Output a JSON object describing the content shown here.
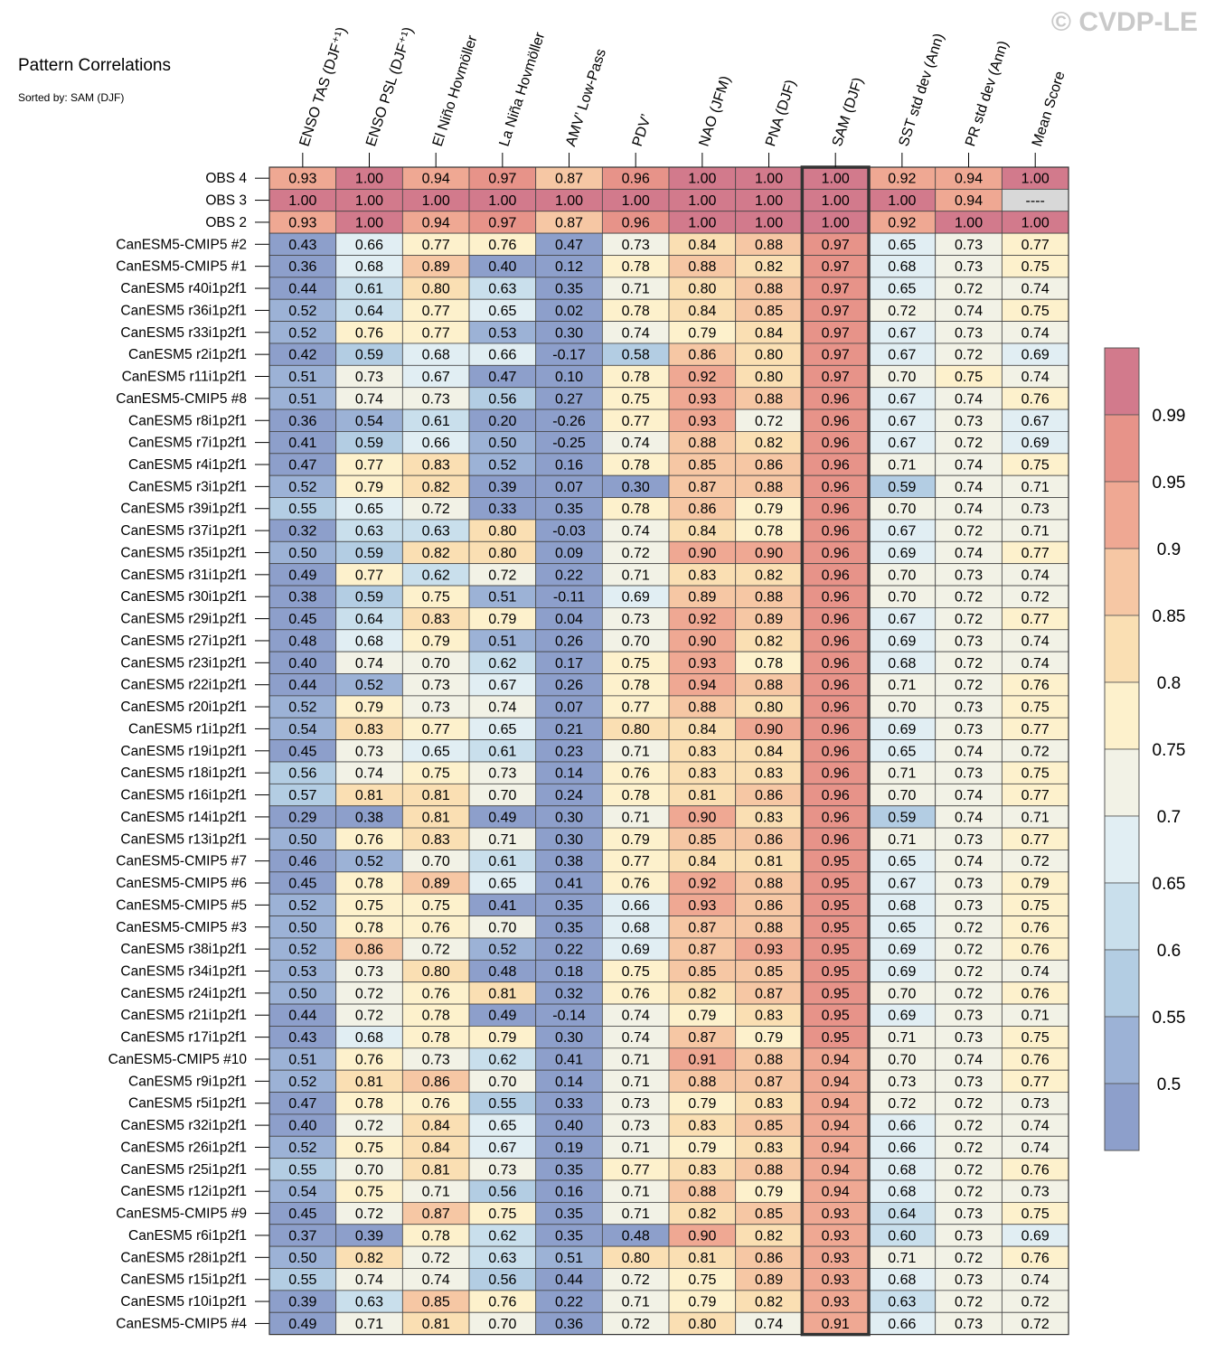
{
  "copyright": "© CVDP-LE",
  "title": "Pattern Correlations",
  "subtitle": "Sorted by: SAM (DJF)",
  "chart_data": {
    "type": "heatmap",
    "highlighted_column": "SAM (DJF)",
    "columns": [
      "ENSO TAS (DJF⁺¹)",
      "ENSO PSL (DJF⁺¹)",
      "El Niño Hovmöller",
      "La Niña Hovmöller",
      "AMV’ Low-Pass",
      "PDV’",
      "NAO (JFM)",
      "PNA (DJF)",
      "SAM (DJF)",
      "SST std dev (Ann)",
      "PR std dev (Ann)",
      "Mean Score"
    ],
    "rows": [
      {
        "label": "OBS 4",
        "values": [
          "0.93",
          "1.00",
          "0.94",
          "0.97",
          "0.87",
          "0.96",
          "1.00",
          "1.00",
          "1.00",
          "0.92",
          "0.94",
          "1.00"
        ]
      },
      {
        "label": "OBS 3",
        "values": [
          "1.00",
          "1.00",
          "1.00",
          "1.00",
          "1.00",
          "1.00",
          "1.00",
          "1.00",
          "1.00",
          "1.00",
          "0.94",
          "----"
        ]
      },
      {
        "label": "OBS 2",
        "values": [
          "0.93",
          "1.00",
          "0.94",
          "0.97",
          "0.87",
          "0.96",
          "1.00",
          "1.00",
          "1.00",
          "0.92",
          "1.00",
          "1.00"
        ]
      },
      {
        "label": "CanESM5-CMIP5 #2",
        "values": [
          "0.43",
          "0.66",
          "0.77",
          "0.76",
          "0.47",
          "0.73",
          "0.84",
          "0.88",
          "0.97",
          "0.65",
          "0.73",
          "0.77"
        ]
      },
      {
        "label": "CanESM5-CMIP5 #1",
        "values": [
          "0.36",
          "0.68",
          "0.89",
          "0.40",
          "0.12",
          "0.78",
          "0.88",
          "0.82",
          "0.97",
          "0.68",
          "0.73",
          "0.75"
        ]
      },
      {
        "label": "CanESM5 r40i1p2f1",
        "values": [
          "0.44",
          "0.61",
          "0.80",
          "0.63",
          "0.35",
          "0.71",
          "0.80",
          "0.88",
          "0.97",
          "0.65",
          "0.72",
          "0.74"
        ]
      },
      {
        "label": "CanESM5 r36i1p2f1",
        "values": [
          "0.52",
          "0.64",
          "0.77",
          "0.65",
          "0.02",
          "0.78",
          "0.84",
          "0.85",
          "0.97",
          "0.72",
          "0.74",
          "0.75"
        ]
      },
      {
        "label": "CanESM5 r33i1p2f1",
        "values": [
          "0.52",
          "0.76",
          "0.77",
          "0.53",
          "0.30",
          "0.74",
          "0.79",
          "0.84",
          "0.97",
          "0.67",
          "0.73",
          "0.74"
        ]
      },
      {
        "label": "CanESM5 r2i1p2f1",
        "values": [
          "0.42",
          "0.59",
          "0.68",
          "0.66",
          "-0.17",
          "0.58",
          "0.86",
          "0.80",
          "0.97",
          "0.67",
          "0.72",
          "0.69"
        ]
      },
      {
        "label": "CanESM5 r11i1p2f1",
        "values": [
          "0.51",
          "0.73",
          "0.67",
          "0.47",
          "0.10",
          "0.78",
          "0.92",
          "0.80",
          "0.97",
          "0.70",
          "0.75",
          "0.74"
        ]
      },
      {
        "label": "CanESM5-CMIP5 #8",
        "values": [
          "0.51",
          "0.74",
          "0.73",
          "0.56",
          "0.27",
          "0.75",
          "0.93",
          "0.88",
          "0.96",
          "0.67",
          "0.74",
          "0.76"
        ]
      },
      {
        "label": "CanESM5 r8i1p2f1",
        "values": [
          "0.36",
          "0.54",
          "0.61",
          "0.20",
          "-0.26",
          "0.77",
          "0.93",
          "0.72",
          "0.96",
          "0.67",
          "0.73",
          "0.67"
        ]
      },
      {
        "label": "CanESM5 r7i1p2f1",
        "values": [
          "0.41",
          "0.59",
          "0.66",
          "0.50",
          "-0.25",
          "0.74",
          "0.88",
          "0.82",
          "0.96",
          "0.67",
          "0.72",
          "0.69"
        ]
      },
      {
        "label": "CanESM5 r4i1p2f1",
        "values": [
          "0.47",
          "0.77",
          "0.83",
          "0.52",
          "0.16",
          "0.78",
          "0.85",
          "0.86",
          "0.96",
          "0.71",
          "0.74",
          "0.75"
        ]
      },
      {
        "label": "CanESM5 r3i1p2f1",
        "values": [
          "0.52",
          "0.79",
          "0.82",
          "0.39",
          "0.07",
          "0.30",
          "0.87",
          "0.88",
          "0.96",
          "0.59",
          "0.74",
          "0.71"
        ]
      },
      {
        "label": "CanESM5 r39i1p2f1",
        "values": [
          "0.55",
          "0.65",
          "0.72",
          "0.33",
          "0.35",
          "0.78",
          "0.86",
          "0.79",
          "0.96",
          "0.70",
          "0.74",
          "0.73"
        ]
      },
      {
        "label": "CanESM5 r37i1p2f1",
        "values": [
          "0.32",
          "0.63",
          "0.63",
          "0.80",
          "-0.03",
          "0.74",
          "0.84",
          "0.78",
          "0.96",
          "0.67",
          "0.72",
          "0.71"
        ]
      },
      {
        "label": "CanESM5 r35i1p2f1",
        "values": [
          "0.50",
          "0.59",
          "0.82",
          "0.80",
          "0.09",
          "0.72",
          "0.90",
          "0.90",
          "0.96",
          "0.69",
          "0.74",
          "0.77"
        ]
      },
      {
        "label": "CanESM5 r31i1p2f1",
        "values": [
          "0.49",
          "0.77",
          "0.62",
          "0.72",
          "0.22",
          "0.71",
          "0.83",
          "0.82",
          "0.96",
          "0.70",
          "0.73",
          "0.74"
        ]
      },
      {
        "label": "CanESM5 r30i1p2f1",
        "values": [
          "0.38",
          "0.59",
          "0.75",
          "0.51",
          "-0.11",
          "0.69",
          "0.89",
          "0.88",
          "0.96",
          "0.70",
          "0.72",
          "0.72"
        ]
      },
      {
        "label": "CanESM5 r29i1p2f1",
        "values": [
          "0.45",
          "0.64",
          "0.83",
          "0.79",
          "0.04",
          "0.73",
          "0.92",
          "0.89",
          "0.96",
          "0.67",
          "0.72",
          "0.77"
        ]
      },
      {
        "label": "CanESM5 r27i1p2f1",
        "values": [
          "0.48",
          "0.68",
          "0.79",
          "0.51",
          "0.26",
          "0.70",
          "0.90",
          "0.82",
          "0.96",
          "0.69",
          "0.73",
          "0.74"
        ]
      },
      {
        "label": "CanESM5 r23i1p2f1",
        "values": [
          "0.40",
          "0.74",
          "0.70",
          "0.62",
          "0.17",
          "0.75",
          "0.93",
          "0.78",
          "0.96",
          "0.68",
          "0.72",
          "0.74"
        ]
      },
      {
        "label": "CanESM5 r22i1p2f1",
        "values": [
          "0.44",
          "0.52",
          "0.73",
          "0.67",
          "0.26",
          "0.78",
          "0.94",
          "0.88",
          "0.96",
          "0.71",
          "0.72",
          "0.76"
        ]
      },
      {
        "label": "CanESM5 r20i1p2f1",
        "values": [
          "0.52",
          "0.79",
          "0.73",
          "0.74",
          "0.07",
          "0.77",
          "0.88",
          "0.80",
          "0.96",
          "0.70",
          "0.73",
          "0.75"
        ]
      },
      {
        "label": "CanESM5 r1i1p2f1",
        "values": [
          "0.54",
          "0.83",
          "0.77",
          "0.65",
          "0.21",
          "0.80",
          "0.84",
          "0.90",
          "0.96",
          "0.69",
          "0.73",
          "0.77"
        ]
      },
      {
        "label": "CanESM5 r19i1p2f1",
        "values": [
          "0.45",
          "0.73",
          "0.65",
          "0.61",
          "0.23",
          "0.71",
          "0.83",
          "0.84",
          "0.96",
          "0.65",
          "0.74",
          "0.72"
        ]
      },
      {
        "label": "CanESM5 r18i1p2f1",
        "values": [
          "0.56",
          "0.74",
          "0.75",
          "0.73",
          "0.14",
          "0.76",
          "0.83",
          "0.83",
          "0.96",
          "0.71",
          "0.73",
          "0.75"
        ]
      },
      {
        "label": "CanESM5 r16i1p2f1",
        "values": [
          "0.57",
          "0.81",
          "0.81",
          "0.70",
          "0.24",
          "0.78",
          "0.81",
          "0.86",
          "0.96",
          "0.70",
          "0.74",
          "0.77"
        ]
      },
      {
        "label": "CanESM5 r14i1p2f1",
        "values": [
          "0.29",
          "0.38",
          "0.81",
          "0.49",
          "0.30",
          "0.71",
          "0.90",
          "0.83",
          "0.96",
          "0.59",
          "0.74",
          "0.71"
        ]
      },
      {
        "label": "CanESM5 r13i1p2f1",
        "values": [
          "0.50",
          "0.76",
          "0.83",
          "0.71",
          "0.30",
          "0.79",
          "0.85",
          "0.86",
          "0.96",
          "0.71",
          "0.73",
          "0.77"
        ]
      },
      {
        "label": "CanESM5-CMIP5 #7",
        "values": [
          "0.46",
          "0.52",
          "0.70",
          "0.61",
          "0.38",
          "0.77",
          "0.84",
          "0.81",
          "0.95",
          "0.65",
          "0.74",
          "0.72"
        ]
      },
      {
        "label": "CanESM5-CMIP5 #6",
        "values": [
          "0.45",
          "0.78",
          "0.89",
          "0.65",
          "0.41",
          "0.76",
          "0.92",
          "0.88",
          "0.95",
          "0.67",
          "0.73",
          "0.79"
        ]
      },
      {
        "label": "CanESM5-CMIP5 #5",
        "values": [
          "0.52",
          "0.75",
          "0.75",
          "0.41",
          "0.35",
          "0.66",
          "0.93",
          "0.86",
          "0.95",
          "0.68",
          "0.73",
          "0.75"
        ]
      },
      {
        "label": "CanESM5-CMIP5 #3",
        "values": [
          "0.50",
          "0.78",
          "0.76",
          "0.70",
          "0.35",
          "0.68",
          "0.87",
          "0.88",
          "0.95",
          "0.65",
          "0.72",
          "0.76"
        ]
      },
      {
        "label": "CanESM5 r38i1p2f1",
        "values": [
          "0.52",
          "0.86",
          "0.72",
          "0.52",
          "0.22",
          "0.69",
          "0.87",
          "0.93",
          "0.95",
          "0.69",
          "0.72",
          "0.76"
        ]
      },
      {
        "label": "CanESM5 r34i1p2f1",
        "values": [
          "0.53",
          "0.73",
          "0.80",
          "0.48",
          "0.18",
          "0.75",
          "0.85",
          "0.85",
          "0.95",
          "0.69",
          "0.72",
          "0.74"
        ]
      },
      {
        "label": "CanESM5 r24i1p2f1",
        "values": [
          "0.50",
          "0.72",
          "0.76",
          "0.81",
          "0.32",
          "0.76",
          "0.82",
          "0.87",
          "0.95",
          "0.70",
          "0.72",
          "0.76"
        ]
      },
      {
        "label": "CanESM5 r21i1p2f1",
        "values": [
          "0.44",
          "0.72",
          "0.78",
          "0.49",
          "-0.14",
          "0.74",
          "0.79",
          "0.83",
          "0.95",
          "0.69",
          "0.73",
          "0.71"
        ]
      },
      {
        "label": "CanESM5 r17i1p2f1",
        "values": [
          "0.43",
          "0.68",
          "0.78",
          "0.79",
          "0.30",
          "0.74",
          "0.87",
          "0.79",
          "0.95",
          "0.71",
          "0.73",
          "0.75"
        ]
      },
      {
        "label": "CanESM5-CMIP5 #10",
        "values": [
          "0.51",
          "0.76",
          "0.73",
          "0.62",
          "0.41",
          "0.71",
          "0.91",
          "0.88",
          "0.94",
          "0.70",
          "0.74",
          "0.76"
        ]
      },
      {
        "label": "CanESM5 r9i1p2f1",
        "values": [
          "0.52",
          "0.81",
          "0.86",
          "0.70",
          "0.14",
          "0.71",
          "0.88",
          "0.87",
          "0.94",
          "0.73",
          "0.73",
          "0.77"
        ]
      },
      {
        "label": "CanESM5 r5i1p2f1",
        "values": [
          "0.47",
          "0.78",
          "0.76",
          "0.55",
          "0.33",
          "0.73",
          "0.79",
          "0.83",
          "0.94",
          "0.72",
          "0.72",
          "0.73"
        ]
      },
      {
        "label": "CanESM5 r32i1p2f1",
        "values": [
          "0.40",
          "0.72",
          "0.84",
          "0.65",
          "0.40",
          "0.73",
          "0.83",
          "0.85",
          "0.94",
          "0.66",
          "0.72",
          "0.74"
        ]
      },
      {
        "label": "CanESM5 r26i1p2f1",
        "values": [
          "0.52",
          "0.75",
          "0.84",
          "0.67",
          "0.19",
          "0.71",
          "0.79",
          "0.83",
          "0.94",
          "0.66",
          "0.72",
          "0.74"
        ]
      },
      {
        "label": "CanESM5 r25i1p2f1",
        "values": [
          "0.55",
          "0.70",
          "0.81",
          "0.73",
          "0.35",
          "0.77",
          "0.83",
          "0.88",
          "0.94",
          "0.68",
          "0.72",
          "0.76"
        ]
      },
      {
        "label": "CanESM5 r12i1p2f1",
        "values": [
          "0.54",
          "0.75",
          "0.71",
          "0.56",
          "0.16",
          "0.71",
          "0.88",
          "0.79",
          "0.94",
          "0.68",
          "0.72",
          "0.73"
        ]
      },
      {
        "label": "CanESM5-CMIP5 #9",
        "values": [
          "0.45",
          "0.72",
          "0.87",
          "0.75",
          "0.35",
          "0.71",
          "0.82",
          "0.85",
          "0.93",
          "0.64",
          "0.73",
          "0.75"
        ]
      },
      {
        "label": "CanESM5 r6i1p2f1",
        "values": [
          "0.37",
          "0.39",
          "0.78",
          "0.62",
          "0.35",
          "0.48",
          "0.90",
          "0.82",
          "0.93",
          "0.60",
          "0.73",
          "0.69"
        ]
      },
      {
        "label": "CanESM5 r28i1p2f1",
        "values": [
          "0.50",
          "0.82",
          "0.72",
          "0.63",
          "0.51",
          "0.80",
          "0.81",
          "0.86",
          "0.93",
          "0.71",
          "0.72",
          "0.76"
        ]
      },
      {
        "label": "CanESM5 r15i1p2f1",
        "values": [
          "0.55",
          "0.74",
          "0.74",
          "0.56",
          "0.44",
          "0.72",
          "0.75",
          "0.89",
          "0.93",
          "0.68",
          "0.73",
          "0.74"
        ]
      },
      {
        "label": "CanESM5 r10i1p2f1",
        "values": [
          "0.39",
          "0.63",
          "0.85",
          "0.76",
          "0.22",
          "0.71",
          "0.79",
          "0.82",
          "0.93",
          "0.63",
          "0.72",
          "0.72"
        ]
      },
      {
        "label": "CanESM5-CMIP5 #4",
        "values": [
          "0.49",
          "0.71",
          "0.81",
          "0.70",
          "0.36",
          "0.72",
          "0.80",
          "0.74",
          "0.91",
          "0.66",
          "0.73",
          "0.72"
        ]
      }
    ],
    "colorbar": {
      "labels": [
        "0.99",
        "0.95",
        "0.9",
        "0.85",
        "0.8",
        "0.75",
        "0.7",
        "0.65",
        "0.6",
        "0.55",
        "0.5"
      ],
      "colors": [
        "#d27a8c",
        "#e79389",
        "#efa893",
        "#f6c7a4",
        "#fadfb3",
        "#fdf1cc",
        "#f2f2e6",
        "#e1eef3",
        "#c9dfec",
        "#b3cde3",
        "#9cb2d6",
        "#8d9fcb"
      ]
    },
    "missing_color": "#d8d8d8"
  }
}
